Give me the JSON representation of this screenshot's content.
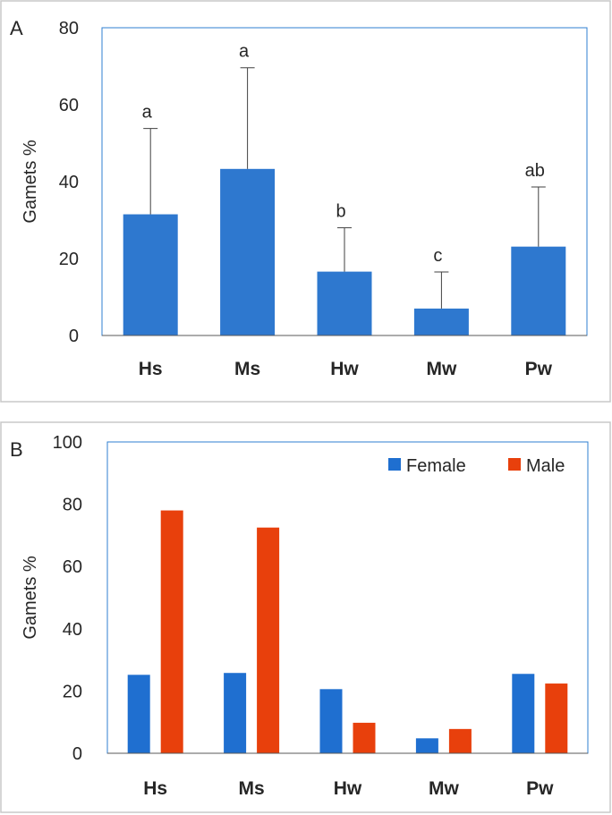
{
  "chart_data": [
    {
      "panel_label": "A",
      "type": "bar",
      "ylabel": "Gamets %",
      "ylim": [
        0,
        80
      ],
      "yticks": [
        0,
        20,
        40,
        60,
        80
      ],
      "categories": [
        "Hs",
        "Ms",
        "Hw",
        "Mw",
        "Pw"
      ],
      "values": [
        31.5,
        43.3,
        16.6,
        7.0,
        23.1
      ],
      "error_upper": [
        22.3,
        26.3,
        11.4,
        9.5,
        15.5
      ],
      "significance": [
        "a",
        "a",
        "b",
        "c",
        "ab"
      ],
      "colors": {
        "bar": "#2e78cf",
        "frame": "#2f7fd1"
      },
      "grid": false
    },
    {
      "panel_label": "B",
      "type": "bar",
      "ylabel": "Gamets %",
      "ylim": [
        0,
        100
      ],
      "yticks": [
        0,
        20,
        40,
        60,
        80,
        100
      ],
      "categories": [
        "Hs",
        "Ms",
        "Hw",
        "Mw",
        "Pw"
      ],
      "series": [
        {
          "name": "Female",
          "color": "#1f6fd0",
          "values": [
            25.2,
            25.8,
            20.6,
            4.8,
            25.5
          ]
        },
        {
          "name": "Male",
          "color": "#e8400c",
          "values": [
            78.0,
            72.5,
            9.8,
            7.8,
            22.4
          ]
        }
      ],
      "legend": "top-right",
      "colors": {
        "frame": "#2f7fd1"
      },
      "grid": false
    }
  ]
}
